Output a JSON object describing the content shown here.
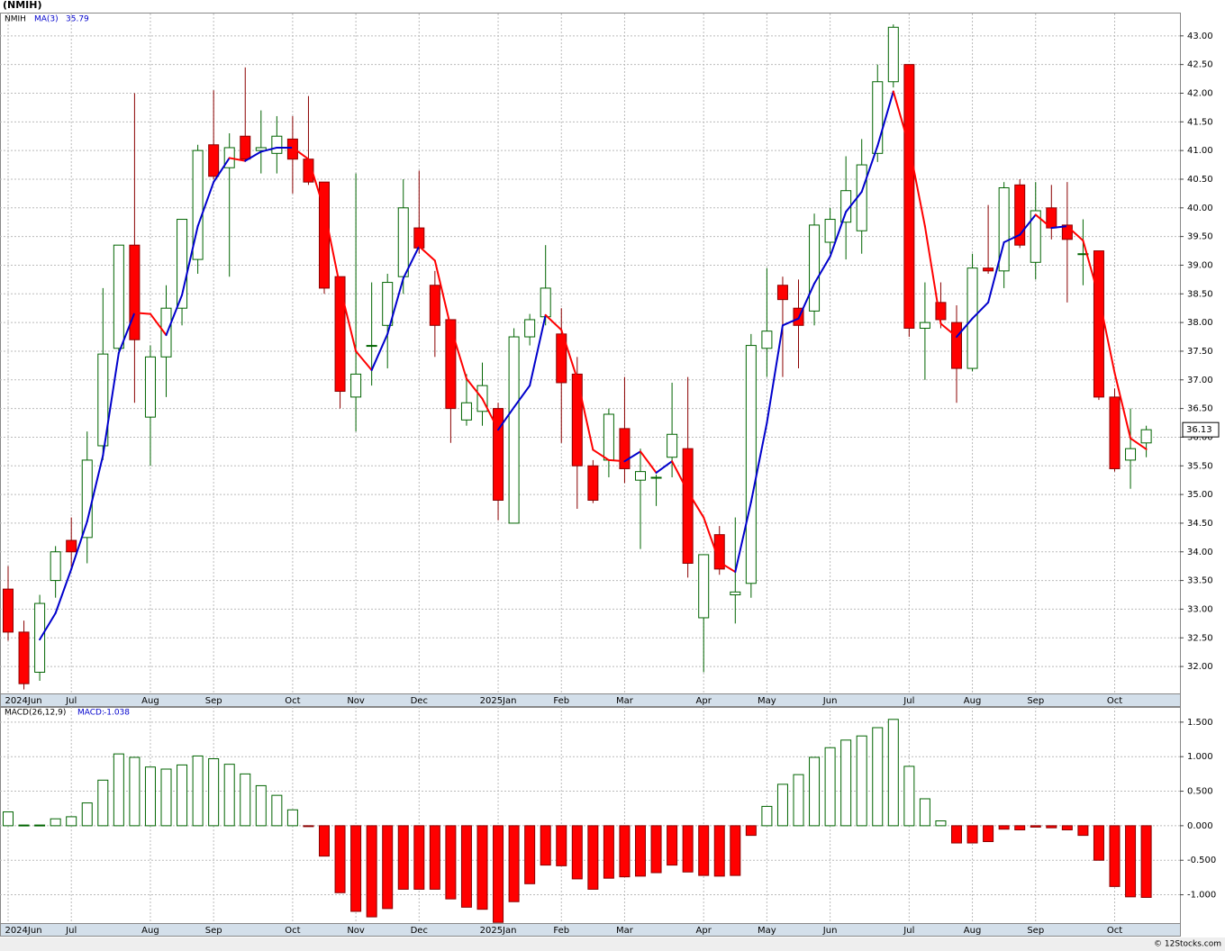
{
  "chart_data": [
    {
      "type": "candlestick",
      "title": "(NMIH)",
      "categories": [
        "2024Jun",
        null,
        null,
        null,
        "Jul",
        null,
        null,
        null,
        null,
        "Aug",
        null,
        null,
        null,
        "Sep",
        null,
        null,
        null,
        null,
        "Oct",
        null,
        null,
        null,
        "Nov",
        null,
        null,
        null,
        "Dec",
        null,
        null,
        null,
        null,
        "2025Jan",
        null,
        null,
        null,
        "Feb",
        null,
        null,
        null,
        "Mar",
        null,
        null,
        null,
        null,
        "Apr",
        null,
        null,
        null,
        "May",
        null,
        null,
        null,
        "Jun",
        null,
        null,
        null,
        null,
        "Jul",
        null,
        null,
        null,
        "Aug",
        null,
        null,
        null,
        "Sep",
        null,
        null,
        null,
        null,
        "Oct",
        null,
        null
      ],
      "series": [
        {
          "name": "NMIH",
          "up_color": "#ffffff",
          "up_edge": "#006400",
          "down_color": "#ff0000",
          "down_edge": "#8b0000",
          "open": [
            33.35,
            32.6,
            31.9,
            33.5,
            34.2,
            34.25,
            35.85,
            37.55,
            39.35,
            36.35,
            37.4,
            38.25,
            39.1,
            41.1,
            40.7,
            41.25,
            41.0,
            40.95,
            41.2,
            40.85,
            40.45,
            38.8,
            36.7,
            37.6,
            37.95,
            38.8,
            39.65,
            38.65,
            38.05,
            36.3,
            36.45,
            36.5,
            34.5,
            37.75,
            38.1,
            37.8,
            37.1,
            35.5,
            35.6,
            36.15,
            35.25,
            35.3,
            35.65,
            35.8,
            32.85,
            34.3,
            33.25,
            33.45,
            37.55,
            38.65,
            38.25,
            38.2,
            39.4,
            39.75,
            39.6,
            40.95,
            42.2,
            42.5,
            37.9,
            38.35,
            38.0,
            37.2,
            38.95,
            38.9,
            40.4,
            39.05,
            40.0,
            39.7,
            39.2,
            39.25,
            36.7,
            35.6,
            35.9
          ],
          "high": [
            33.75,
            32.8,
            33.25,
            34.1,
            34.6,
            36.1,
            38.6,
            39.35,
            42.0,
            37.6,
            38.65,
            39.8,
            41.1,
            42.05,
            41.3,
            42.45,
            41.7,
            41.6,
            41.6,
            41.95,
            40.45,
            38.8,
            40.6,
            38.7,
            38.85,
            40.5,
            40.65,
            38.9,
            38.05,
            37.1,
            37.3,
            36.6,
            37.9,
            38.15,
            39.35,
            38.25,
            37.4,
            35.6,
            36.5,
            37.05,
            35.8,
            35.35,
            36.95,
            37.05,
            33.95,
            34.45,
            34.6,
            37.8,
            38.95,
            38.8,
            38.75,
            39.9,
            40.0,
            40.9,
            41.2,
            42.5,
            43.2,
            42.5,
            38.7,
            38.7,
            38.3,
            39.2,
            40.05,
            40.45,
            40.5,
            40.45,
            40.4,
            40.45,
            39.8,
            39.25,
            36.85,
            36.5,
            36.2
          ],
          "low": [
            32.45,
            31.6,
            31.75,
            33.2,
            33.7,
            33.8,
            35.6,
            37.5,
            36.6,
            35.5,
            36.7,
            37.95,
            38.85,
            40.5,
            38.8,
            40.8,
            40.6,
            40.6,
            40.25,
            40.4,
            38.5,
            36.5,
            36.1,
            36.9,
            37.2,
            38.5,
            39.2,
            37.4,
            35.9,
            36.2,
            36.2,
            34.55,
            34.5,
            37.6,
            37.95,
            35.9,
            34.75,
            34.85,
            35.3,
            35.2,
            34.05,
            34.8,
            35.3,
            33.55,
            31.9,
            33.6,
            32.75,
            33.2,
            37.05,
            37.05,
            37.2,
            37.95,
            39.2,
            39.1,
            39.2,
            40.8,
            42.1,
            37.75,
            37.0,
            37.9,
            36.6,
            37.15,
            38.85,
            38.6,
            39.3,
            38.75,
            39.45,
            38.35,
            38.65,
            36.65,
            35.4,
            35.1,
            35.65
          ],
          "close": [
            32.6,
            31.7,
            33.1,
            34.0,
            34.0,
            35.6,
            37.45,
            39.35,
            37.7,
            37.4,
            38.25,
            39.8,
            41.0,
            40.55,
            41.05,
            40.85,
            41.05,
            41.25,
            40.85,
            40.45,
            38.6,
            36.8,
            37.1,
            37.6,
            38.7,
            40.0,
            39.3,
            37.95,
            36.5,
            36.6,
            36.9,
            34.9,
            37.75,
            38.05,
            38.6,
            36.95,
            35.5,
            34.9,
            36.4,
            35.45,
            35.4,
            35.3,
            36.05,
            33.8,
            33.95,
            33.7,
            33.3,
            37.6,
            37.85,
            38.4,
            37.95,
            39.7,
            39.8,
            40.3,
            40.75,
            42.2,
            43.15,
            37.9,
            38.0,
            38.05,
            37.2,
            38.95,
            38.9,
            40.35,
            39.35,
            39.95,
            39.65,
            39.45,
            39.2,
            36.7,
            35.45,
            35.8,
            36.13
          ]
        },
        {
          "name": "MA(3)",
          "color": "#0000cc",
          "down_color": "#ff0000",
          "values": [
            null,
            null,
            32.47,
            32.93,
            33.7,
            34.53,
            35.68,
            37.47,
            38.17,
            38.15,
            37.78,
            38.48,
            39.68,
            40.45,
            40.87,
            40.82,
            40.98,
            41.05,
            41.05,
            40.85,
            39.97,
            38.62,
            37.5,
            37.17,
            37.8,
            38.77,
            39.33,
            39.08,
            37.92,
            37.02,
            36.67,
            36.13,
            36.52,
            36.9,
            38.13,
            37.87,
            37.02,
            35.78,
            35.6,
            35.58,
            35.75,
            35.38,
            35.58,
            35.05,
            34.6,
            33.82,
            33.65,
            34.87,
            36.25,
            37.95,
            38.07,
            38.68,
            39.15,
            39.93,
            40.28,
            41.08,
            42.03,
            41.08,
            39.68,
            37.98,
            37.75,
            38.07,
            38.35,
            39.4,
            39.53,
            39.88,
            39.65,
            39.68,
            39.43,
            38.45,
            37.12,
            35.98,
            35.79
          ]
        }
      ],
      "ylim": [
        31.53,
        43.39
      ],
      "yticks": [
        {
          "value": 32,
          "label": "32.00"
        },
        {
          "value": 32.5,
          "label": "32.50"
        },
        {
          "value": 33,
          "label": "33.00"
        },
        {
          "value": 33.5,
          "label": "33.50"
        },
        {
          "value": 34,
          "label": "34.00"
        },
        {
          "value": 34.5,
          "label": "34.50"
        },
        {
          "value": 35,
          "label": "35.00"
        },
        {
          "value": 35.5,
          "label": "35.50"
        },
        {
          "value": 36,
          "label": "36.00"
        },
        {
          "value": 36.5,
          "label": "36.50"
        },
        {
          "value": 37,
          "label": "37.00"
        },
        {
          "value": 37.5,
          "label": "37.50"
        },
        {
          "value": 38,
          "label": "38.00"
        },
        {
          "value": 38.5,
          "label": "38.50"
        },
        {
          "value": 39,
          "label": "39.00"
        },
        {
          "value": 39.5,
          "label": "39.50"
        },
        {
          "value": 40,
          "label": "40.00"
        },
        {
          "value": 40.5,
          "label": "40.50"
        },
        {
          "value": 41,
          "label": "41.00"
        },
        {
          "value": 41.5,
          "label": "41.50"
        },
        {
          "value": 42,
          "label": "42.00"
        },
        {
          "value": 42.5,
          "label": "42.50"
        },
        {
          "value": 43,
          "label": "43.00"
        }
      ],
      "grid": true
    },
    {
      "type": "bar",
      "series": [
        {
          "name": "MACD(26,12,9)",
          "value_name": "MACD:",
          "up_color": "#ffffff",
          "up_edge": "#006400",
          "down_color": "#ff0000",
          "down_edge": "#8b0000",
          "values": [
            0.2,
            0.01,
            0.01,
            0.1,
            0.13,
            0.33,
            0.66,
            1.04,
            0.99,
            0.85,
            0.82,
            0.88,
            1.01,
            0.97,
            0.89,
            0.75,
            0.58,
            0.44,
            0.23,
            -0.01,
            -0.44,
            -0.97,
            -1.24,
            -1.32,
            -1.2,
            -0.92,
            -0.92,
            -0.92,
            -1.06,
            -1.18,
            -1.21,
            -1.4,
            -1.1,
            -0.84,
            -0.57,
            -0.58,
            -0.77,
            -0.92,
            -0.76,
            -0.74,
            -0.73,
            -0.68,
            -0.57,
            -0.67,
            -0.72,
            -0.73,
            -0.72,
            -0.14,
            0.28,
            0.6,
            0.74,
            0.99,
            1.13,
            1.24,
            1.3,
            1.42,
            1.54,
            0.86,
            0.39,
            0.07,
            -0.25,
            -0.25,
            -0.23,
            -0.05,
            -0.06,
            -0.02,
            -0.03,
            -0.06,
            -0.14,
            -0.5,
            -0.88,
            -1.03,
            -1.038
          ]
        }
      ],
      "ylim": [
        -1.41,
        1.72
      ],
      "yticks": [
        {
          "value": 1.5,
          "label": "1.500"
        },
        {
          "value": 1,
          "label": "1.000"
        },
        {
          "value": 0.5,
          "label": "0.500"
        },
        {
          "value": 0,
          "label": "0.000"
        },
        {
          "value": -0.5,
          "label": "-0.500"
        },
        {
          "value": -1,
          "label": "-1.000"
        }
      ],
      "grid": true
    }
  ],
  "footer": "© 12Stocks.com"
}
